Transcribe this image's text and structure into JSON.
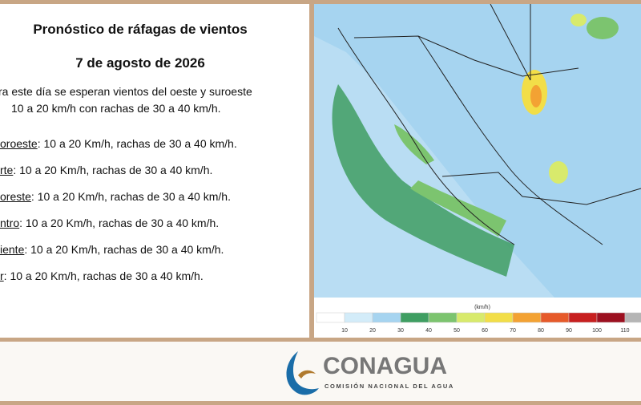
{
  "header": {
    "title": "Pronóstico de ráfagas de vientos",
    "date": "7 de agosto de 2026"
  },
  "intro": [
    "ra este día se esperan vientos del oeste y suroeste",
    "10 a 20 km/h con rachas de 30 a 40 km/h."
  ],
  "regions": [
    {
      "name": "oroeste",
      "detail": ":  10 a 20 Km/h, rachas de 30 a 40 km/h."
    },
    {
      "name": "rte",
      "detail": ": 10 a 20 Km/h, rachas de 30 a 40 km/h."
    },
    {
      "name": "oreste",
      "detail": ":  10 a 20 Km/h, rachas de 30 a 40 km/h."
    },
    {
      "name": "ntro",
      "detail": ":  10 a 20 Km/h, rachas de 30 a 40 km/h."
    },
    {
      "name": "iente",
      "detail": ":  10 a 20 Km/h, rachas de 30 a 40 km/h."
    },
    {
      "name": "r",
      "detail": ":  10 a 20 Km/h, rachas de 30 a 40 km/h."
    }
  ],
  "legend": {
    "unit": "(km/h)",
    "labels": [
      "10",
      "20",
      "30",
      "40",
      "50",
      "60",
      "70",
      "80",
      "90",
      "100",
      "110"
    ],
    "colors": [
      "#ffffff",
      "#d3ecf9",
      "#a6d4f0",
      "#3f9e62",
      "#7cc46f",
      "#d8ea6c",
      "#f2de48",
      "#f3a233",
      "#e65a2a",
      "#c71f1f",
      "#9c1020",
      "#b5b5b5",
      "#333333"
    ]
  },
  "logo": {
    "name": "CONAGUA",
    "subtitle": "COMISIÓN NACIONAL DEL AGUA"
  }
}
